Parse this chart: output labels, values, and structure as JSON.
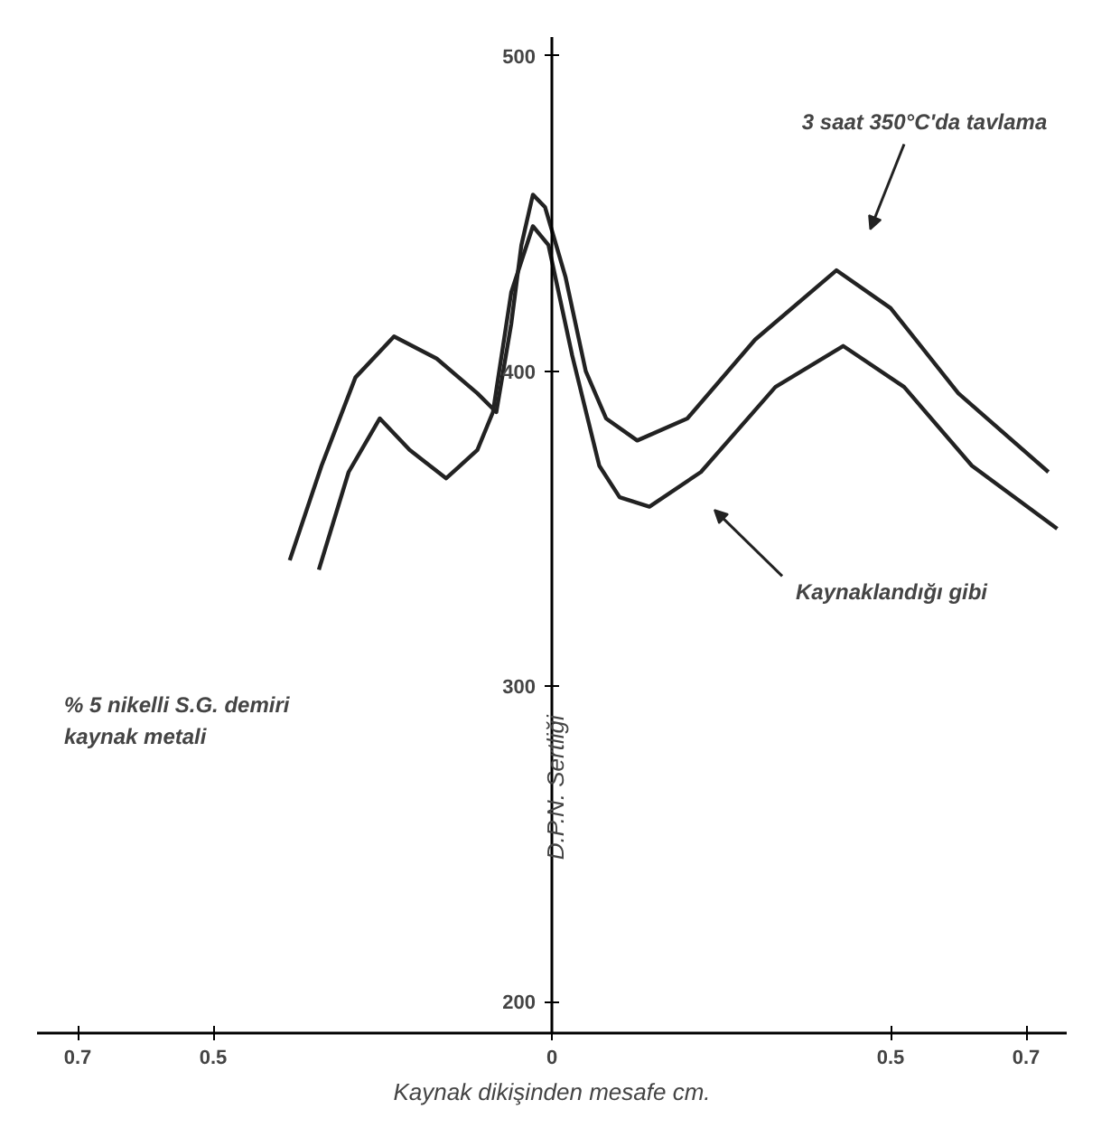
{
  "chart_data": {
    "type": "line",
    "xlabel": "Kaynak dikişinden mesafe cm.",
    "ylabel": "D.P.N. Sertliği",
    "xlim": [
      -0.76,
      0.76
    ],
    "ylim": [
      190,
      506
    ],
    "xticks": [
      {
        "value": -0.7,
        "label": "0.7"
      },
      {
        "value": -0.5,
        "label": "0.5"
      },
      0,
      0.5,
      0.7
    ],
    "yticks": [
      200,
      300,
      400,
      500
    ],
    "grid": false,
    "marker": "none",
    "line_style": "solid",
    "series": [
      {
        "name": "3 saat 350°C'da tavlama",
        "color": "#222222",
        "x": [
          -0.387,
          -0.34,
          -0.29,
          -0.233,
          -0.17,
          -0.11,
          -0.082,
          -0.06,
          -0.045,
          -0.028,
          -0.01,
          0.02,
          0.05,
          0.08,
          0.126,
          0.2,
          0.3,
          0.42,
          0.5,
          0.6,
          0.733
        ],
        "values": [
          340,
          370,
          398,
          411,
          404,
          393,
          387,
          415,
          440,
          456,
          452,
          430,
          400,
          385,
          378,
          385,
          410,
          432,
          420,
          393,
          368
        ]
      },
      {
        "name": "Kaynaklandığı gibi",
        "color": "#222222",
        "x": [
          -0.344,
          -0.3,
          -0.254,
          -0.21,
          -0.156,
          -0.11,
          -0.087,
          -0.06,
          -0.028,
          -0.005,
          0.03,
          0.07,
          0.1,
          0.144,
          0.22,
          0.33,
          0.43,
          0.52,
          0.62,
          0.746
        ],
        "values": [
          337,
          368,
          385,
          375,
          366,
          375,
          387,
          425,
          446,
          440,
          405,
          370,
          360,
          357,
          368,
          395,
          408,
          395,
          370,
          350
        ]
      }
    ],
    "annotations": [
      "% 5 nikelli S.G. demiri kaynak metali"
    ]
  }
}
